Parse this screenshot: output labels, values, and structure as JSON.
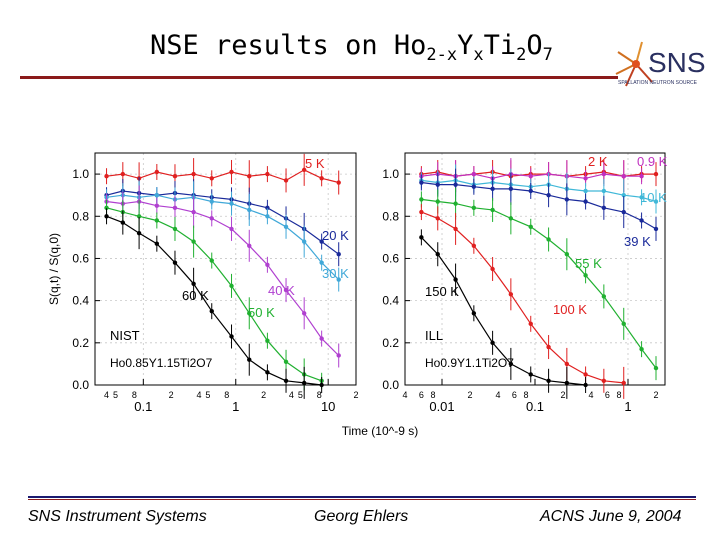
{
  "slide": {
    "title_main": "NSE results on Ho",
    "title_sub1": "2-x",
    "title_mid": "Y",
    "title_sub2": "x",
    "title_mid2": "Ti",
    "title_sub3": "2",
    "title_mid3": "O",
    "title_sub4": "7",
    "logo_text": "SNS",
    "logo_caption": "SPALLATION NEUTRON SOURCE",
    "footer_left": "SNS Instrument Systems",
    "footer_center": "Georg Ehlers",
    "footer_right": "ACNS  June 9, 2004"
  },
  "chart_data": [
    {
      "type": "scatter",
      "panel": "left",
      "xscale": "log",
      "xlim": [
        0.03,
        20
      ],
      "ylim": [
        0,
        1.1
      ],
      "xticks": [
        0.1,
        1,
        10
      ],
      "xtick_labels": [
        "0.1",
        "1",
        "10"
      ],
      "minor_tick_labels": [
        "4",
        "5",
        "8",
        "2",
        "4",
        "5",
        "8",
        "2",
        "4",
        "5",
        "8",
        "2"
      ],
      "yticks": [
        0.0,
        0.2,
        0.4,
        0.6,
        0.8,
        1.0
      ],
      "ytick_labels": [
        "0.0",
        "0.2",
        "0.4",
        "0.6",
        "0.8",
        "1.0"
      ],
      "ylabel": "S(q,t) / S(q,0)",
      "annotation_instrument": "NIST",
      "annotation_sample": "Ho0.85Y1.15Ti2O7",
      "series": [
        {
          "name": "5 K",
          "color": "#e02020",
          "x": [
            0.04,
            0.06,
            0.09,
            0.14,
            0.22,
            0.35,
            0.55,
            0.9,
            1.4,
            2.2,
            3.5,
            5.5,
            8.5,
            13
          ],
          "y": [
            0.99,
            1.0,
            0.98,
            1.01,
            0.99,
            1.0,
            0.98,
            1.01,
            0.99,
            1.0,
            0.97,
            1.02,
            0.98,
            0.96
          ]
        },
        {
          "name": "20 K",
          "color": "#1a2a9a",
          "x": [
            0.04,
            0.06,
            0.09,
            0.14,
            0.22,
            0.35,
            0.55,
            0.9,
            1.4,
            2.2,
            3.5,
            5.5,
            8.5,
            13
          ],
          "y": [
            0.9,
            0.92,
            0.91,
            0.9,
            0.91,
            0.9,
            0.89,
            0.88,
            0.86,
            0.84,
            0.79,
            0.74,
            0.68,
            0.62
          ]
        },
        {
          "name": "30 K",
          "color": "#40a8d8",
          "x": [
            0.04,
            0.06,
            0.09,
            0.14,
            0.22,
            0.35,
            0.55,
            0.9,
            1.4,
            2.2,
            3.5,
            5.5,
            8.5,
            13
          ],
          "y": [
            0.89,
            0.9,
            0.89,
            0.9,
            0.88,
            0.89,
            0.87,
            0.86,
            0.83,
            0.8,
            0.75,
            0.68,
            0.58,
            0.5
          ]
        },
        {
          "name": "40 K",
          "color": "#b040d0",
          "x": [
            0.04,
            0.06,
            0.09,
            0.14,
            0.22,
            0.35,
            0.55,
            0.9,
            1.4,
            2.2,
            3.5,
            5.5,
            8.5,
            13
          ],
          "y": [
            0.87,
            0.86,
            0.87,
            0.85,
            0.84,
            0.82,
            0.79,
            0.74,
            0.66,
            0.57,
            0.45,
            0.34,
            0.22,
            0.14
          ]
        },
        {
          "name": "50 K",
          "color": "#20b030",
          "x": [
            0.04,
            0.06,
            0.09,
            0.14,
            0.22,
            0.35,
            0.55,
            0.9,
            1.4,
            2.2,
            3.5,
            5.5,
            8.5
          ],
          "y": [
            0.84,
            0.82,
            0.8,
            0.78,
            0.74,
            0.68,
            0.59,
            0.47,
            0.34,
            0.21,
            0.11,
            0.05,
            0.02
          ]
        },
        {
          "name": "60 K",
          "color": "#000000",
          "x": [
            0.04,
            0.06,
            0.09,
            0.14,
            0.22,
            0.35,
            0.55,
            0.9,
            1.4,
            2.2,
            3.5,
            5.5,
            8.5
          ],
          "y": [
            0.8,
            0.77,
            0.72,
            0.67,
            0.58,
            0.48,
            0.35,
            0.23,
            0.12,
            0.06,
            0.02,
            0.01,
            0.0
          ]
        }
      ]
    },
    {
      "type": "scatter",
      "panel": "right",
      "xscale": "log",
      "xlim": [
        0.004,
        2.5
      ],
      "ylim": [
        0,
        1.1
      ],
      "xticks": [
        0.01,
        0.1,
        1
      ],
      "xtick_labels": [
        "0.01",
        "0.1",
        "1"
      ],
      "minor_tick_labels": [
        "4",
        "6",
        "8",
        "2",
        "4",
        "6",
        "8",
        "2",
        "4",
        "6",
        "8",
        "2",
        "4",
        "6",
        "8",
        "2"
      ],
      "yticks": [
        0.0,
        0.2,
        0.4,
        0.6,
        0.8,
        1.0
      ],
      "ytick_labels": [
        "0.0",
        "0.2",
        "0.4",
        "0.6",
        "0.8",
        "1.0"
      ],
      "xlabel": "Time (10^-9 s)",
      "annotation_instrument": "ILL",
      "annotation_sample": "Ho0.9Y1.1Ti2O7",
      "series": [
        {
          "name": "2 K",
          "color": "#e02020",
          "x": [
            0.006,
            0.009,
            0.014,
            0.022,
            0.035,
            0.055,
            0.09,
            0.14,
            0.22,
            0.35,
            0.55,
            0.9,
            1.4,
            2.0
          ],
          "y": [
            1.0,
            1.01,
            0.99,
            1.0,
            1.01,
            0.99,
            1.0,
            1.0,
            0.99,
            1.0,
            1.01,
            0.99,
            1.0,
            1.0
          ]
        },
        {
          "name": "0.9 K",
          "color": "#c030c0",
          "x": [
            0.006,
            0.009,
            0.014,
            0.022,
            0.035,
            0.055,
            0.09,
            0.14,
            0.22,
            0.35,
            0.55,
            0.9,
            1.4
          ],
          "y": [
            0.99,
            1.0,
            0.99,
            1.0,
            0.98,
            1.0,
            0.99,
            1.0,
            0.99,
            0.98,
            1.0,
            0.99,
            0.99
          ]
        },
        {
          "name": "10 K",
          "color": "#40b8d8",
          "x": [
            0.006,
            0.009,
            0.014,
            0.022,
            0.035,
            0.055,
            0.09,
            0.14,
            0.22,
            0.35,
            0.55,
            0.9,
            1.4,
            2.0
          ],
          "y": [
            0.97,
            0.96,
            0.97,
            0.95,
            0.96,
            0.95,
            0.94,
            0.95,
            0.93,
            0.92,
            0.92,
            0.9,
            0.89,
            0.87
          ]
        },
        {
          "name": "39 K",
          "color": "#1a2a9a",
          "x": [
            0.006,
            0.009,
            0.014,
            0.022,
            0.035,
            0.055,
            0.09,
            0.14,
            0.22,
            0.35,
            0.55,
            0.9,
            1.4,
            2.0
          ],
          "y": [
            0.96,
            0.95,
            0.95,
            0.94,
            0.93,
            0.93,
            0.92,
            0.9,
            0.88,
            0.87,
            0.84,
            0.82,
            0.78,
            0.74
          ]
        },
        {
          "name": "55 K",
          "color": "#20b030",
          "x": [
            0.006,
            0.009,
            0.014,
            0.022,
            0.035,
            0.055,
            0.09,
            0.14,
            0.22,
            0.35,
            0.55,
            0.9,
            1.4,
            2.0
          ],
          "y": [
            0.88,
            0.87,
            0.86,
            0.84,
            0.83,
            0.79,
            0.75,
            0.69,
            0.62,
            0.52,
            0.42,
            0.29,
            0.17,
            0.08
          ]
        },
        {
          "name": "100 K",
          "color": "#e02020",
          "x": [
            0.006,
            0.009,
            0.014,
            0.022,
            0.035,
            0.055,
            0.09,
            0.14,
            0.22,
            0.35,
            0.55,
            0.9
          ],
          "y": [
            0.82,
            0.79,
            0.74,
            0.66,
            0.55,
            0.43,
            0.29,
            0.18,
            0.1,
            0.05,
            0.02,
            0.01
          ]
        },
        {
          "name": "150 K",
          "color": "#000000",
          "x": [
            0.006,
            0.009,
            0.014,
            0.022,
            0.035,
            0.055,
            0.09,
            0.14,
            0.22,
            0.35
          ],
          "y": [
            0.7,
            0.62,
            0.5,
            0.34,
            0.2,
            0.1,
            0.05,
            0.02,
            0.01,
            0.0
          ]
        }
      ]
    }
  ]
}
